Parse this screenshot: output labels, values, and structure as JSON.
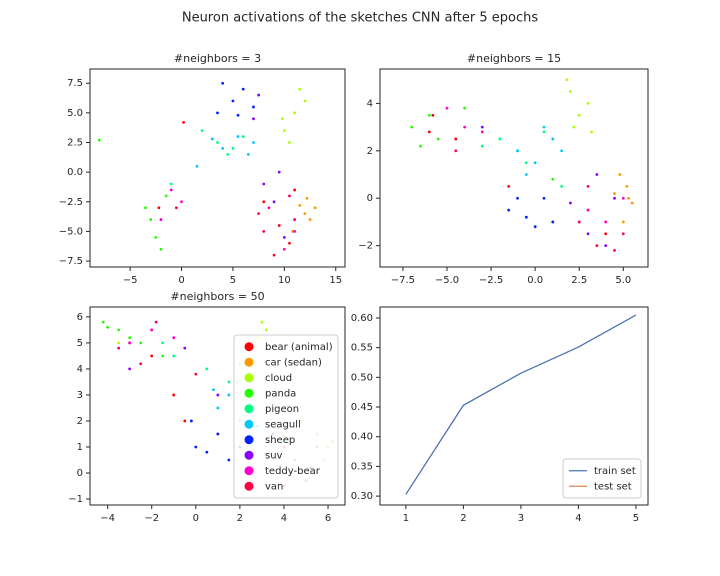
{
  "title": "Neuron activations of the sketches CNN after 5 epochs",
  "chart_data": [
    {
      "type": "scatter",
      "title": "#neighbors = 3",
      "xlim": [
        -8.9,
        15.9
      ],
      "ylim": [
        -8.0,
        8.7
      ],
      "xticks": [
        {
          "value": -5,
          "label": "−5"
        },
        0,
        5,
        10,
        15
      ],
      "yticks": [
        7.5,
        {
          "value": 5,
          "label": "5.0"
        },
        2.5,
        {
          "value": 0,
          "label": "0.0"
        },
        {
          "value": -2.5,
          "label": "−2.5"
        },
        {
          "value": -5,
          "label": "−5.0"
        },
        {
          "value": -7.5,
          "label": "−7.5"
        }
      ],
      "series": [
        {
          "color": "#ff0000",
          "x": [
            -2.2,
            9.5,
            10.5,
            8,
            0.2,
            11
          ],
          "y": [
            -3,
            -4.5,
            -6,
            -2.5,
            4.2,
            -1.5
          ]
        },
        {
          "color": "#ff9900",
          "x": [
            12,
            12.5,
            11.5,
            13,
            10.8,
            12.2
          ],
          "y": [
            -3.5,
            -4,
            -2.8,
            -3,
            -5,
            -2.2
          ]
        },
        {
          "color": "#aaff00",
          "x": [
            10,
            11,
            11.5,
            12,
            10.5,
            9.8
          ],
          "y": [
            3.5,
            5,
            7,
            6,
            2.5,
            4.5
          ]
        },
        {
          "color": "#22ff00",
          "x": [
            -3,
            -2.5,
            -3.5,
            -1.5,
            -8,
            -2
          ],
          "y": [
            -4,
            -5.5,
            -3,
            -2,
            2.7,
            -6.5
          ]
        },
        {
          "color": "#00ff80",
          "x": [
            3.5,
            5,
            6,
            2,
            -1,
            4.5
          ],
          "y": [
            2.5,
            2,
            3,
            3.5,
            -1,
            1.5
          ]
        },
        {
          "color": "#00c8ff",
          "x": [
            4,
            5.5,
            7,
            3,
            6.5,
            1.5
          ],
          "y": [
            2,
            3,
            2.5,
            2.8,
            1.5,
            0.5
          ]
        },
        {
          "color": "#0022ff",
          "x": [
            4,
            5,
            6,
            7,
            5.5,
            3.5
          ],
          "y": [
            7.5,
            6,
            7,
            5.5,
            4.8,
            5
          ]
        },
        {
          "color": "#8800ff",
          "x": [
            8,
            9,
            7,
            10,
            7.5,
            9.5
          ],
          "y": [
            -1,
            -2.5,
            4.5,
            -5.5,
            6.5,
            0
          ]
        },
        {
          "color": "#ff00cc",
          "x": [
            -1,
            0,
            -2,
            8.5,
            10,
            11
          ],
          "y": [
            -1.5,
            -2.5,
            -4,
            -3,
            -6.5,
            -5
          ]
        },
        {
          "color": "#ff0044",
          "x": [
            8,
            9,
            11,
            7.5,
            10.5,
            -0.5
          ],
          "y": [
            -5,
            -7,
            -4,
            -3.5,
            -2,
            -3
          ]
        }
      ]
    },
    {
      "type": "scatter",
      "title": "#neighbors = 15",
      "xlim": [
        -8.8,
        6.4
      ],
      "ylim": [
        -2.9,
        5.45
      ],
      "xticks": [
        {
          "value": -7.5,
          "label": "−7.5"
        },
        {
          "value": -5,
          "label": "−5.0"
        },
        {
          "value": -2.5,
          "label": "−2.5"
        },
        {
          "value": 0,
          "label": "0.0"
        },
        2.5,
        {
          "value": 5,
          "label": "5.0"
        }
      ],
      "yticks": [
        4,
        2,
        0,
        {
          "value": -2,
          "label": "−2"
        }
      ],
      "series": [
        {
          "color": "#ff0000",
          "x": [
            -5.8,
            -4.5,
            -1.5,
            3,
            4,
            -6
          ],
          "y": [
            3.5,
            2.5,
            0.5,
            -0.5,
            -1.5,
            2.8
          ]
        },
        {
          "color": "#ff9900",
          "x": [
            5.2,
            5.5,
            4.8,
            5,
            5.3,
            4.5
          ],
          "y": [
            0.5,
            -0.2,
            1,
            -1,
            0,
            0.2
          ]
        },
        {
          "color": "#aaff00",
          "x": [
            2,
            2.5,
            3,
            1.8,
            2.2,
            3.2
          ],
          "y": [
            4.5,
            3.5,
            4,
            5,
            3,
            2.8
          ]
        },
        {
          "color": "#22ff00",
          "x": [
            -7,
            -6,
            -5.5,
            -4,
            1,
            -6.5
          ],
          "y": [
            3,
            3.5,
            2.5,
            3.8,
            0.8,
            2.2
          ]
        },
        {
          "color": "#00ff80",
          "x": [
            -2,
            -1,
            0.5,
            1.5,
            -0.5,
            -3
          ],
          "y": [
            2.5,
            2,
            2.8,
            0.5,
            1.5,
            2.2
          ]
        },
        {
          "color": "#00c8ff",
          "x": [
            -1,
            0,
            1,
            -0.5,
            0.5,
            1.5
          ],
          "y": [
            2,
            1.5,
            2.5,
            1,
            3,
            2
          ]
        },
        {
          "color": "#0022ff",
          "x": [
            -1.5,
            -0.5,
            0.5,
            1,
            -1,
            0
          ],
          "y": [
            -0.5,
            -0.8,
            0,
            -1,
            0,
            -1.2
          ]
        },
        {
          "color": "#8800ff",
          "x": [
            3,
            4,
            4.5,
            -3,
            3.5,
            2
          ],
          "y": [
            -1.5,
            -2,
            0,
            3,
            1,
            -0.2
          ]
        },
        {
          "color": "#ff00cc",
          "x": [
            -4,
            -3,
            -5,
            3,
            4,
            5
          ],
          "y": [
            3,
            2.8,
            3.8,
            -0.5,
            -1,
            0
          ]
        },
        {
          "color": "#ff0044",
          "x": [
            3.5,
            4.5,
            3,
            5,
            -4.5,
            2.5
          ],
          "y": [
            -2,
            -2.2,
            0.5,
            -1.5,
            2,
            -1
          ]
        }
      ]
    },
    {
      "type": "scatter",
      "title": "#neighbors = 50",
      "legend": "lower right",
      "xlim": [
        -4.8,
        6.77
      ],
      "ylim": [
        -1.23,
        6.38
      ],
      "xticks": [
        {
          "value": -4,
          "label": "−4"
        },
        {
          "value": -2,
          "label": "−2"
        },
        0,
        2,
        4,
        6
      ],
      "yticks": [
        6,
        5,
        4,
        3,
        2,
        1,
        0,
        {
          "value": -1,
          "label": "−1"
        }
      ],
      "series": [
        {
          "name": "bear (animal)",
          "color": "#ff0000",
          "x": [
            -0.5,
            -3,
            -2,
            1,
            4,
            -1
          ],
          "y": [
            2,
            5,
            4.5,
            1.5,
            1,
            3
          ]
        },
        {
          "name": "car (sedan)",
          "color": "#ff9900",
          "x": [
            6,
            5.8,
            5.5,
            6.2,
            5,
            4.8
          ],
          "y": [
            1,
            0.5,
            1.5,
            1.2,
            0,
            2
          ]
        },
        {
          "name": "cloud",
          "color": "#aaff00",
          "x": [
            3,
            3.2,
            2.8,
            3.5,
            -3.5,
            2.5
          ],
          "y": [
            5.8,
            5.5,
            5.2,
            4.8,
            5,
            4.2
          ]
        },
        {
          "name": "panda",
          "color": "#22ff00",
          "x": [
            -4.2,
            -3.5,
            -2.5,
            -3,
            -1.5,
            -4
          ],
          "y": [
            5.8,
            5.5,
            5,
            5.2,
            4.5,
            5.6
          ]
        },
        {
          "name": "pigeon",
          "color": "#00ff80",
          "x": [
            0.5,
            1.5,
            2,
            -1,
            -1.5,
            2.5
          ],
          "y": [
            4,
            3.5,
            4.2,
            4.5,
            5,
            3
          ]
        },
        {
          "name": "seagull",
          "color": "#00c8ff",
          "x": [
            1,
            1.5,
            2,
            2.5,
            0.8,
            2.8
          ],
          "y": [
            2.5,
            3,
            2,
            3.5,
            3.2,
            1.8
          ]
        },
        {
          "name": "sheep",
          "color": "#0022ff",
          "x": [
            0,
            0.5,
            1,
            1.5,
            2,
            -0.2
          ],
          "y": [
            1,
            0.8,
            1.5,
            0.5,
            1,
            2
          ]
        },
        {
          "name": "suv",
          "color": "#8800ff",
          "x": [
            -2,
            -0.5,
            1,
            2.5,
            3.5,
            -3
          ],
          "y": [
            5.5,
            4.8,
            3,
            2.5,
            1.5,
            4
          ]
        },
        {
          "name": "teddy-bear",
          "color": "#ff00cc",
          "x": [
            -3,
            -2,
            -1,
            4.5,
            5.5,
            5
          ],
          "y": [
            5,
            5.5,
            5.2,
            0.5,
            1,
            -0.3
          ]
        },
        {
          "name": "van",
          "color": "#ff0044",
          "x": [
            -3.5,
            -2.5,
            -1.8,
            4,
            5.2,
            0
          ],
          "y": [
            4.8,
            4.2,
            5.8,
            -0.5,
            0.2,
            3.8
          ]
        }
      ]
    },
    {
      "type": "line",
      "legend": "lower right",
      "x": [
        1,
        2,
        3,
        4,
        5
      ],
      "xlim": [
        0.55,
        5.21
      ],
      "ylim": [
        0.285,
        0.6185
      ],
      "xticks": [
        1,
        2,
        3,
        4,
        5
      ],
      "yticks": [
        {
          "value": 0.3,
          "label": "0.30"
        },
        0.35,
        {
          "value": 0.4,
          "label": "0.40"
        },
        0.45,
        {
          "value": 0.5,
          "label": "0.50"
        },
        0.55,
        {
          "value": 0.6,
          "label": "0.60"
        }
      ],
      "series": [
        {
          "name": "train set",
          "color": "#4c72b0",
          "values": [
            0.303,
            0.453,
            0.507,
            0.551,
            0.605
          ]
        },
        {
          "name": "test set",
          "color": "#dd8452",
          "values": [
            null,
            null,
            null,
            null,
            null
          ]
        }
      ]
    }
  ]
}
